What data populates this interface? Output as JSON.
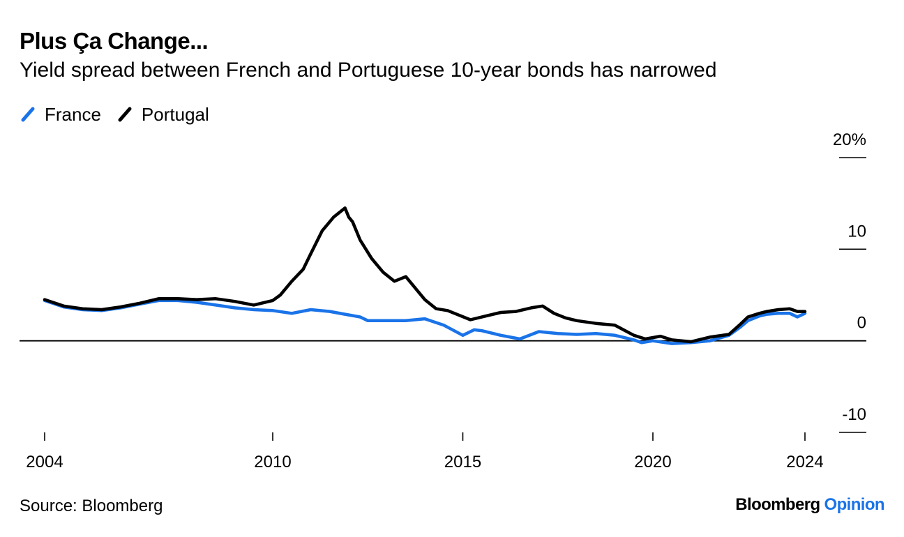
{
  "title": "Plus Ça Change...",
  "subtitle": "Yield spread between French and Portuguese 10-year bonds has narrowed",
  "source": "Source: Bloomberg",
  "brand": {
    "name": "Bloomberg",
    "product": "Opinion",
    "accent_color": "#1a73e8"
  },
  "chart_data": {
    "type": "line",
    "title": "Plus Ça Change...",
    "subtitle": "Yield spread between French and Portuguese 10-year bonds has narrowed",
    "xlabel": "",
    "ylabel": "",
    "xlim": [
      2004.0,
      2025.2
    ],
    "ylim": [
      -10,
      20
    ],
    "y_ticks": [
      -10,
      0,
      10,
      20
    ],
    "y_tick_labels": [
      "-10",
      "0",
      "10",
      "20%"
    ],
    "x_ticks": [
      2004,
      2010,
      2015,
      2020,
      2024
    ],
    "x_tick_labels": [
      "2004",
      "2010",
      "2015",
      "2020",
      "2024"
    ],
    "legend": {
      "position": "top-left"
    },
    "grid": false,
    "series": [
      {
        "name": "France",
        "color": "#1a73e8",
        "x": [
          2004.0,
          2004.5,
          2005.0,
          2005.5,
          2006.0,
          2006.5,
          2007.0,
          2007.5,
          2008.0,
          2008.5,
          2009.0,
          2009.5,
          2010.0,
          2010.5,
          2011.0,
          2011.5,
          2011.9,
          2012.3,
          2012.5,
          2013.0,
          2013.5,
          2014.0,
          2014.5,
          2015.0,
          2015.3,
          2015.5,
          2016.0,
          2016.5,
          2017.0,
          2017.5,
          2018.0,
          2018.5,
          2019.0,
          2019.5,
          2019.7,
          2020.0,
          2020.5,
          2021.0,
          2021.5,
          2022.0,
          2022.3,
          2022.5,
          2022.8,
          2023.0,
          2023.3,
          2023.6,
          2023.8,
          2024.0
        ],
        "y": [
          4.4,
          3.7,
          3.4,
          3.3,
          3.6,
          4.0,
          4.4,
          4.4,
          4.2,
          3.9,
          3.6,
          3.4,
          3.3,
          3.0,
          3.4,
          3.2,
          2.9,
          2.6,
          2.2,
          2.2,
          2.2,
          2.4,
          1.7,
          0.6,
          1.2,
          1.1,
          0.6,
          0.2,
          1.0,
          0.8,
          0.7,
          0.8,
          0.6,
          0.1,
          -0.2,
          0.0,
          -0.3,
          -0.2,
          0.0,
          0.6,
          1.5,
          2.2,
          2.7,
          2.9,
          3.0,
          3.0,
          2.6,
          3.0
        ]
      },
      {
        "name": "Portugal",
        "color": "#000000",
        "x": [
          2004.0,
          2004.5,
          2005.0,
          2005.5,
          2006.0,
          2006.5,
          2007.0,
          2007.5,
          2008.0,
          2008.5,
          2009.0,
          2009.5,
          2010.0,
          2010.2,
          2010.5,
          2010.8,
          2011.0,
          2011.3,
          2011.6,
          2011.9,
          2012.0,
          2012.1,
          2012.3,
          2012.6,
          2012.9,
          2013.2,
          2013.5,
          2013.8,
          2014.0,
          2014.3,
          2014.6,
          2014.9,
          2015.2,
          2015.6,
          2016.0,
          2016.4,
          2016.8,
          2017.1,
          2017.4,
          2017.7,
          2018.0,
          2018.5,
          2019.0,
          2019.5,
          2019.8,
          2020.2,
          2020.5,
          2021.0,
          2021.5,
          2022.0,
          2022.3,
          2022.5,
          2022.8,
          2023.0,
          2023.3,
          2023.6,
          2023.8,
          2024.0
        ],
        "y": [
          4.5,
          3.8,
          3.5,
          3.4,
          3.7,
          4.1,
          4.6,
          4.6,
          4.5,
          4.6,
          4.3,
          3.9,
          4.4,
          5.0,
          6.5,
          7.8,
          9.5,
          12.0,
          13.5,
          14.5,
          13.5,
          13.0,
          11.0,
          9.0,
          7.5,
          6.5,
          7.0,
          5.5,
          4.5,
          3.5,
          3.3,
          2.8,
          2.3,
          2.7,
          3.1,
          3.2,
          3.6,
          3.8,
          3.0,
          2.5,
          2.2,
          1.9,
          1.7,
          0.6,
          0.2,
          0.5,
          0.1,
          -0.1,
          0.4,
          0.7,
          1.8,
          2.6,
          3.0,
          3.2,
          3.4,
          3.5,
          3.2,
          3.2
        ]
      }
    ]
  }
}
